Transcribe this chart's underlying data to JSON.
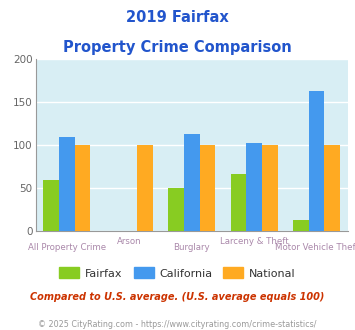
{
  "title_line1": "2019 Fairfax",
  "title_line2": "Property Crime Comparison",
  "categories": [
    "All Property Crime",
    "Arson",
    "Burglary",
    "Larceny & Theft",
    "Motor Vehicle Theft"
  ],
  "fairfax": [
    60,
    0,
    50,
    67,
    13
  ],
  "california": [
    110,
    0,
    113,
    103,
    163
  ],
  "national": [
    100,
    100,
    100,
    100,
    100
  ],
  "colors": {
    "fairfax": "#88cc22",
    "california": "#4499ee",
    "national": "#ffaa22"
  },
  "ylim": [
    0,
    200
  ],
  "yticks": [
    0,
    50,
    100,
    150,
    200
  ],
  "background_color": "#d8eef4",
  "title_color": "#2255cc",
  "xlabel_color": "#aa88aa",
  "footer_note": "Compared to U.S. average. (U.S. average equals 100)",
  "footer_copy": "© 2025 CityRating.com - https://www.cityrating.com/crime-statistics/",
  "footer_note_color": "#cc3300",
  "footer_copy_color": "#999999",
  "legend_labels": [
    "Fairfax",
    "California",
    "National"
  ],
  "bar_width": 0.25,
  "group_positions": [
    0,
    1,
    2,
    3,
    4
  ]
}
